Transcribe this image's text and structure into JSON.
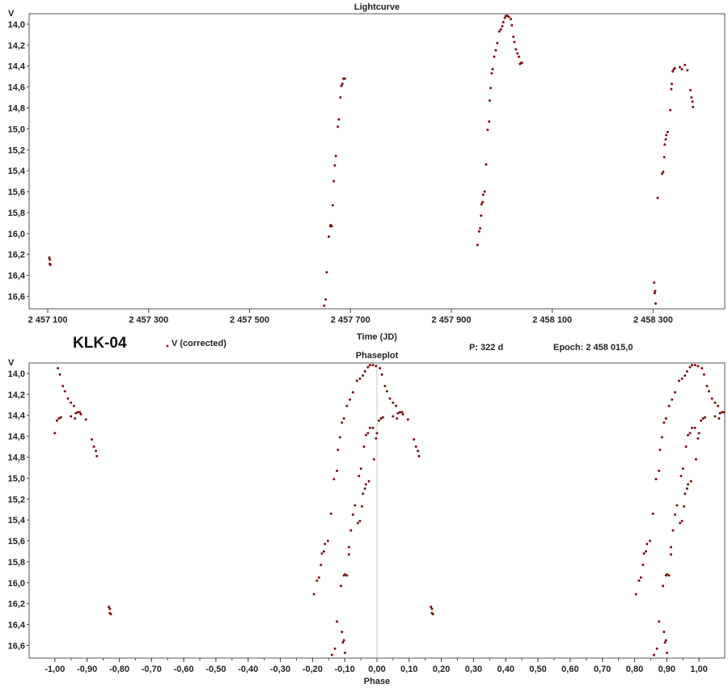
{
  "header": {
    "star_name": "KLK-04",
    "legend_label": "V (corrected)",
    "period": "P:  322 d",
    "epoch": "Epoch:  2 458 015,0"
  },
  "colors": {
    "point": "#7a1010",
    "axis": "#444444",
    "zero_line": "#c8c8c8"
  },
  "chart_data": [
    {
      "type": "scatter",
      "title": "Lightcurve",
      "xlabel": "Time (JD)",
      "ylabel": "V",
      "y_inverted": true,
      "xlim": [
        2457063,
        2458442
      ],
      "ylim": [
        13.9,
        16.72
      ],
      "x_ticks": [
        2457100,
        2457300,
        2457500,
        2457700,
        2457900,
        2458100,
        2458300
      ],
      "x_tick_labels": [
        "2 457 100",
        "2 457 300",
        "2 457 500",
        "2 457 700",
        "2 457 900",
        "2 458 100",
        "2 458 300"
      ],
      "y_ticks": [
        14.0,
        14.2,
        14.4,
        14.6,
        14.8,
        15.0,
        15.2,
        15.4,
        15.6,
        15.8,
        16.0,
        16.2,
        16.4,
        16.6
      ],
      "y_tick_labels": [
        "14,0",
        "14,2",
        "14,4",
        "14,6",
        "14,8",
        "15,0",
        "15,2",
        "15,4",
        "15,6",
        "15,8",
        "16,0",
        "16,2",
        "16,4",
        "16,6"
      ],
      "series": [
        {
          "name": "V (corrected)",
          "x": [
            2457103,
            2457104,
            2457104,
            2457105,
            2457648,
            2457651,
            2457653,
            2457657,
            2457660,
            2457661,
            2457663,
            2457665,
            2457667,
            2457669,
            2457671,
            2457675,
            2457677,
            2457680,
            2457682,
            2457684,
            2457686,
            2457689,
            2457952,
            2457955,
            2457957,
            2457959,
            2457960,
            2457962,
            2457963,
            2457966,
            2457969,
            2457972,
            2457975,
            2457976,
            2457978,
            2457980,
            2457982,
            2457985,
            2457988,
            2457991,
            2457995,
            2457998,
            2458001,
            2458003,
            2458006,
            2458008,
            2458011,
            2458014,
            2458018,
            2458020,
            2458023,
            2458025,
            2458028,
            2458031,
            2458034,
            2458036,
            2458038,
            2458040,
            2458302,
            2458303,
            2458304,
            2458305,
            2458309,
            2458318,
            2458320,
            2458322,
            2458323,
            2458325,
            2458326,
            2458329,
            2458334,
            2458336,
            2458337,
            2458339,
            2458341,
            2458343,
            2458353,
            2458357,
            2458363,
            2458368,
            2458374,
            2458376,
            2458378,
            2458379
          ],
          "y": [
            16.23,
            16.25,
            16.29,
            16.3,
            16.69,
            16.63,
            16.37,
            16.03,
            15.93,
            15.92,
            15.93,
            15.73,
            15.5,
            15.35,
            15.26,
            14.98,
            14.91,
            14.7,
            14.59,
            14.57,
            14.52,
            14.52,
            16.11,
            15.98,
            15.95,
            15.83,
            15.72,
            15.7,
            15.63,
            15.6,
            15.34,
            15.01,
            14.93,
            14.73,
            14.61,
            14.47,
            14.43,
            14.31,
            14.25,
            14.18,
            14.07,
            14.05,
            14.02,
            13.98,
            13.94,
            13.92,
            13.92,
            13.93,
            13.95,
            14.01,
            14.12,
            14.17,
            14.24,
            14.28,
            14.31,
            14.38,
            14.37,
            14.37,
            16.47,
            16.57,
            16.55,
            16.67,
            15.66,
            15.43,
            15.41,
            15.27,
            15.15,
            15.1,
            15.06,
            15.03,
            14.82,
            14.62,
            14.57,
            14.45,
            14.43,
            14.42,
            14.41,
            14.43,
            14.39,
            14.44,
            14.63,
            14.7,
            14.74,
            14.79
          ]
        }
      ]
    },
    {
      "type": "scatter",
      "title": "Phaseplot",
      "xlabel": "Phase",
      "ylabel": "V",
      "y_inverted": true,
      "xlim": [
        -1.08,
        1.08
      ],
      "ylim": [
        13.9,
        16.72
      ],
      "x_ticks": [
        -1.0,
        -0.9,
        -0.8,
        -0.7,
        -0.6,
        -0.5,
        -0.4,
        -0.3,
        -0.2,
        -0.1,
        0.0,
        0.1,
        0.2,
        0.3,
        0.4,
        0.5,
        0.6,
        0.7,
        0.8,
        0.9,
        1.0
      ],
      "x_tick_labels": [
        "-1,00",
        "-0,90",
        "-0,80",
        "-0,70",
        "-0,60",
        "-0,50",
        "-0,40",
        "-0,30",
        "-0,20",
        "-0,10",
        "0,00",
        "0,10",
        "0,20",
        "0,30",
        "0,40",
        "0,50",
        "0,60",
        "0,70",
        "0,80",
        "0,90",
        "1,00"
      ],
      "y_ticks": [
        14.0,
        14.2,
        14.4,
        14.6,
        14.8,
        15.0,
        15.2,
        15.4,
        15.6,
        15.8,
        16.0,
        16.2,
        16.4,
        16.6
      ],
      "y_tick_labels": [
        "14,0",
        "14,2",
        "14,4",
        "14,6",
        "14,8",
        "15,0",
        "15,2",
        "15,4",
        "15,6",
        "15,8",
        "16,0",
        "16,2",
        "16,4",
        "16,6"
      ],
      "x_minor_step": 0.05,
      "zero_line": true,
      "period": 322,
      "epoch": 2458015.0,
      "series": [
        {
          "name": "V (corrected)",
          "derived_from": "Lightcurve",
          "phase_repeat": [
            -1,
            0,
            1
          ]
        }
      ]
    }
  ]
}
